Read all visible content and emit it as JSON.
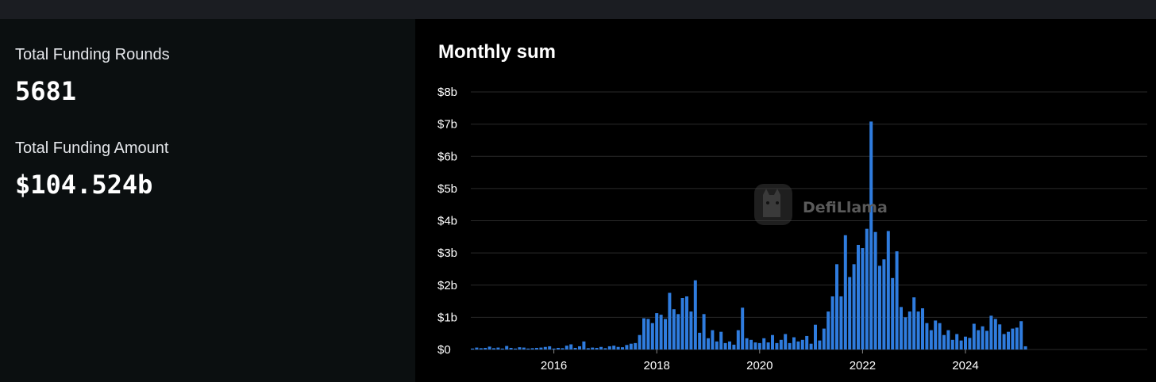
{
  "stats": {
    "rounds_label": "Total Funding Rounds",
    "rounds_value": "5681",
    "amount_label": "Total Funding Amount",
    "amount_value": "$104.524b"
  },
  "chart_title": "Monthly sum",
  "watermark": "DefiLlama",
  "colors": {
    "bar": "#2f7cde",
    "grid": "#2a2a2a",
    "text": "#ffffff",
    "left_panel": "#0b0f10",
    "top_bar": "#1b1d22"
  },
  "chart_data": {
    "type": "bar",
    "title": "Monthly sum",
    "xlabel": "",
    "ylabel": "",
    "x_start": "2014-06",
    "ylim": [
      0,
      8
    ],
    "y_unit": "billion USD",
    "y_ticks": [
      "$0",
      "$1b",
      "$2b",
      "$3b",
      "$4b",
      "$5b",
      "$6b",
      "$7b",
      "$8b"
    ],
    "x_ticks": [
      {
        "label": "2016",
        "month": "2016-01"
      },
      {
        "label": "2018",
        "month": "2018-01"
      },
      {
        "label": "2020",
        "month": "2020-01"
      },
      {
        "label": "2022",
        "month": "2022-01"
      },
      {
        "label": "2024",
        "month": "2024-01"
      }
    ],
    "grid": true,
    "legend": "none",
    "values": [
      0.03,
      0.06,
      0.04,
      0.05,
      0.09,
      0.04,
      0.06,
      0.03,
      0.11,
      0.05,
      0.03,
      0.07,
      0.06,
      0.03,
      0.04,
      0.05,
      0.06,
      0.08,
      0.1,
      0.03,
      0.05,
      0.04,
      0.12,
      0.16,
      0.05,
      0.1,
      0.25,
      0.04,
      0.06,
      0.05,
      0.08,
      0.04,
      0.1,
      0.12,
      0.08,
      0.07,
      0.14,
      0.18,
      0.2,
      0.45,
      0.97,
      0.95,
      0.82,
      1.13,
      1.08,
      0.95,
      1.76,
      1.25,
      1.1,
      1.6,
      1.65,
      1.18,
      2.15,
      0.52,
      1.1,
      0.35,
      0.6,
      0.25,
      0.55,
      0.2,
      0.25,
      0.15,
      0.6,
      1.3,
      0.35,
      0.3,
      0.22,
      0.2,
      0.35,
      0.22,
      0.45,
      0.2,
      0.3,
      0.48,
      0.2,
      0.38,
      0.25,
      0.3,
      0.42,
      0.18,
      0.77,
      0.28,
      0.65,
      1.18,
      1.65,
      2.65,
      1.65,
      3.55,
      2.25,
      2.65,
      3.25,
      3.15,
      3.75,
      7.08,
      3.65,
      2.6,
      2.8,
      3.68,
      2.22,
      3.05,
      1.32,
      1.0,
      1.18,
      1.62,
      1.18,
      1.28,
      0.82,
      0.6,
      0.9,
      0.82,
      0.45,
      0.6,
      0.3,
      0.48,
      0.28,
      0.4,
      0.36,
      0.8,
      0.6,
      0.72,
      0.58,
      1.05,
      0.95,
      0.78,
      0.48,
      0.55,
      0.65,
      0.68,
      0.88,
      0.1
    ]
  }
}
